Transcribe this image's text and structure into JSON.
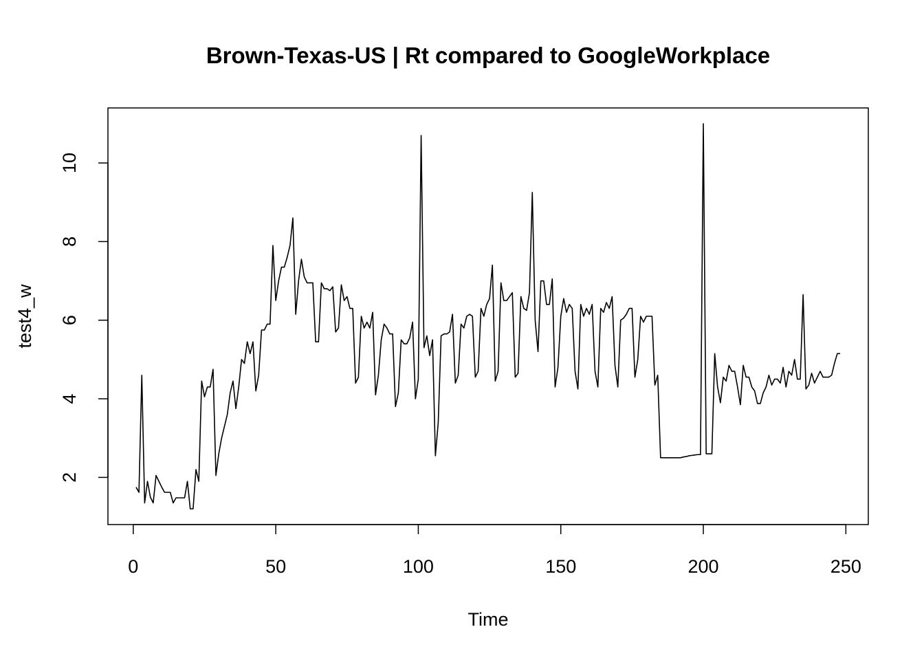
{
  "chart_data": {
    "type": "line",
    "title": "Brown-Texas-US | Rt compared to GoogleWorkplace",
    "xlabel": "Time",
    "ylabel": "test4_w",
    "color": "#000000",
    "x": [
      1,
      2,
      3,
      4,
      5,
      6,
      7,
      8,
      9,
      10,
      11,
      12,
      13,
      14,
      15,
      16,
      17,
      18,
      19,
      20,
      21,
      22,
      23,
      24,
      25,
      26,
      27,
      28,
      29,
      30,
      31,
      32,
      33,
      34,
      35,
      36,
      37,
      38,
      39,
      40,
      41,
      42,
      43,
      44,
      45,
      46,
      47,
      48,
      49,
      50,
      51,
      52,
      53,
      54,
      55,
      56,
      57,
      58,
      59,
      60,
      61,
      62,
      63,
      64,
      65,
      66,
      67,
      68,
      69,
      70,
      71,
      72,
      73,
      74,
      75,
      76,
      77,
      78,
      79,
      80,
      81,
      82,
      83,
      84,
      85,
      86,
      87,
      88,
      89,
      90,
      91,
      92,
      93,
      94,
      95,
      96,
      97,
      98,
      99,
      100,
      101,
      102,
      103,
      104,
      105,
      106,
      107,
      108,
      109,
      110,
      111,
      112,
      113,
      114,
      115,
      116,
      117,
      118,
      119,
      120,
      121,
      122,
      123,
      124,
      125,
      126,
      127,
      128,
      129,
      130,
      131,
      132,
      133,
      134,
      135,
      136,
      137,
      138,
      139,
      140,
      141,
      142,
      143,
      144,
      145,
      146,
      147,
      148,
      149,
      150,
      151,
      152,
      153,
      154,
      155,
      156,
      157,
      158,
      159,
      160,
      161,
      162,
      163,
      164,
      165,
      166,
      167,
      168,
      169,
      170,
      171,
      172,
      173,
      174,
      175,
      176,
      177,
      178,
      179,
      180,
      181,
      182,
      183,
      184,
      185,
      186,
      187,
      188,
      189,
      190,
      191,
      192,
      193,
      194,
      195,
      196,
      197,
      198,
      199,
      200,
      201,
      202,
      203,
      204,
      205,
      206,
      207,
      208,
      209,
      210,
      211,
      212,
      213,
      214,
      215,
      216,
      217,
      218,
      219,
      220,
      221,
      222,
      223,
      224,
      225,
      226,
      227,
      228,
      229,
      230,
      231,
      232,
      233,
      234,
      235,
      236,
      237,
      238,
      239,
      240,
      241,
      242,
      243,
      244,
      245,
      246,
      247,
      248
    ],
    "values": [
      1.75,
      1.62,
      4.6,
      1.35,
      1.9,
      1.5,
      1.35,
      2.05,
      1.9,
      1.75,
      1.62,
      1.62,
      1.62,
      1.35,
      1.48,
      1.48,
      1.48,
      1.48,
      1.9,
      1.2,
      1.2,
      2.2,
      1.9,
      4.45,
      4.05,
      4.3,
      4.3,
      4.75,
      2.05,
      2.6,
      3.0,
      3.3,
      3.6,
      4.15,
      4.45,
      3.75,
      4.3,
      5.0,
      4.9,
      5.45,
      5.15,
      5.45,
      4.2,
      4.6,
      5.75,
      5.75,
      5.9,
      5.9,
      7.9,
      6.5,
      7.0,
      7.35,
      7.35,
      7.6,
      7.9,
      8.6,
      6.15,
      7.0,
      7.55,
      7.1,
      6.95,
      6.95,
      6.95,
      5.45,
      5.45,
      6.95,
      6.8,
      6.8,
      6.75,
      6.85,
      5.7,
      5.8,
      6.9,
      6.5,
      6.6,
      6.3,
      6.3,
      4.4,
      4.55,
      6.1,
      5.8,
      5.95,
      5.8,
      6.2,
      4.1,
      4.6,
      5.5,
      5.9,
      5.8,
      5.65,
      5.65,
      3.8,
      4.15,
      5.5,
      5.4,
      5.4,
      5.55,
      5.95,
      4.0,
      4.5,
      10.7,
      5.3,
      5.6,
      5.1,
      5.5,
      2.55,
      3.4,
      5.6,
      5.65,
      5.65,
      5.7,
      6.15,
      4.4,
      4.6,
      5.9,
      5.8,
      6.1,
      6.15,
      6.1,
      4.55,
      4.7,
      6.3,
      6.1,
      6.4,
      6.55,
      7.4,
      4.45,
      4.7,
      6.95,
      6.5,
      6.5,
      6.6,
      6.7,
      4.55,
      4.65,
      6.6,
      6.3,
      6.25,
      6.7,
      9.25,
      6.0,
      5.2,
      7.0,
      7.0,
      6.4,
      6.4,
      7.05,
      4.3,
      4.8,
      6.1,
      6.55,
      6.2,
      6.4,
      6.3,
      4.7,
      4.25,
      6.4,
      6.1,
      6.3,
      6.15,
      6.4,
      4.7,
      4.3,
      6.3,
      6.2,
      6.45,
      6.3,
      6.6,
      4.85,
      4.3,
      6.0,
      6.05,
      6.15,
      6.3,
      6.3,
      4.55,
      5.0,
      6.1,
      5.95,
      6.1,
      6.1,
      6.1,
      4.35,
      4.6,
      2.5,
      2.5,
      2.5,
      2.5,
      2.5,
      2.5,
      2.5,
      2.5,
      2.52,
      2.53,
      2.55,
      2.56,
      2.57,
      2.58,
      2.58,
      11.0,
      2.6,
      2.6,
      2.6,
      5.15,
      4.3,
      3.9,
      4.55,
      4.45,
      4.85,
      4.7,
      4.7,
      4.3,
      3.85,
      4.85,
      4.55,
      4.55,
      4.3,
      4.2,
      3.88,
      3.88,
      4.15,
      4.3,
      4.6,
      4.35,
      4.5,
      4.5,
      4.4,
      4.8,
      4.3,
      4.7,
      4.6,
      5.0,
      4.5,
      4.5,
      6.65,
      4.25,
      4.35,
      4.65,
      4.4,
      4.55,
      4.7,
      4.55,
      4.55,
      4.55,
      4.6,
      4.9,
      5.15,
      5.15
    ],
    "xlim": [
      -8.88,
      257.88
    ],
    "xticks": [
      0,
      50,
      100,
      150,
      200,
      250
    ],
    "ylim": [
      0.8,
      11.4
    ],
    "yticks": [
      2,
      4,
      6,
      8,
      10
    ]
  }
}
